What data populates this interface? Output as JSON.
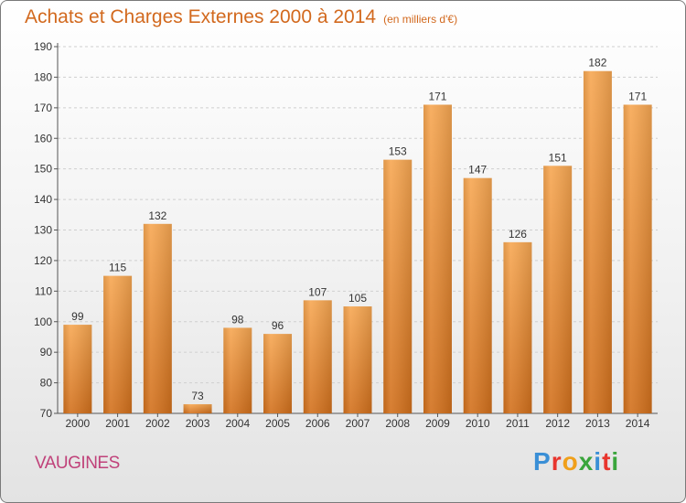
{
  "header": {
    "title": "Achats et Charges Externes 2000 à 2014",
    "unit": "(en milliers d'€)"
  },
  "footer": {
    "place": "VAUGINES",
    "brand_letters": [
      "P",
      "r",
      "o",
      "x",
      "i",
      "t",
      "i"
    ],
    "brand_colors": [
      "#3a8fd6",
      "#e8352d",
      "#f0a01a",
      "#3aa53c",
      "#3a8fd6",
      "#e8352d",
      "#3aa53c"
    ]
  },
  "chart_data": {
    "type": "bar",
    "title": "Achats et Charges Externes 2000 à 2014",
    "categories": [
      "2000",
      "2001",
      "2002",
      "2003",
      "2004",
      "2005",
      "2006",
      "2007",
      "2008",
      "2009",
      "2010",
      "2011",
      "2012",
      "2013",
      "2014"
    ],
    "values": [
      99,
      115,
      132,
      73,
      98,
      96,
      107,
      105,
      153,
      171,
      147,
      126,
      151,
      182,
      171
    ],
    "ylim": [
      70,
      190
    ],
    "yticks": [
      70,
      80,
      90,
      100,
      110,
      120,
      130,
      140,
      150,
      160,
      170,
      180,
      190
    ],
    "grid": true,
    "bar_color_top": "#f7a752",
    "bar_color_bottom": "#d2701c"
  }
}
